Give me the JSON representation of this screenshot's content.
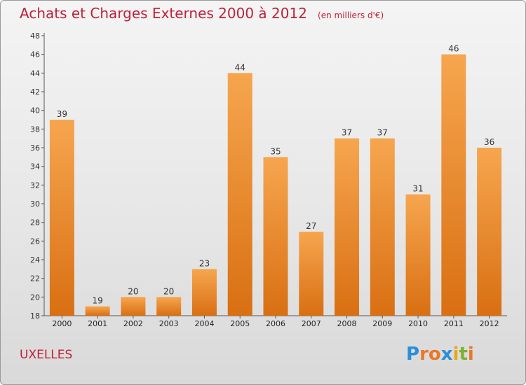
{
  "title": "Achats et Charges Externes 2000 à 2012",
  "unit": "(en milliers d'€)",
  "commune": "UXELLES",
  "logo": {
    "letters": [
      "P",
      "r",
      "o",
      "x",
      "i",
      "t",
      "i"
    ],
    "colors": [
      "#2a8fd6",
      "#e8782a",
      "#e8782a",
      "#2a8fd6",
      "#e8a71a",
      "#7ab32e",
      "#e8782a"
    ]
  },
  "colors": {
    "bar_light": "#f6a64f",
    "bar_dark": "#d96f12",
    "accent": "#c0203a"
  },
  "chart_data": {
    "type": "bar",
    "categories": [
      "2000",
      "2001",
      "2002",
      "2003",
      "2004",
      "2005",
      "2006",
      "2007",
      "2008",
      "2009",
      "2010",
      "2011",
      "2012"
    ],
    "values": [
      39,
      19,
      20,
      20,
      23,
      44,
      35,
      27,
      37,
      37,
      31,
      46,
      36
    ],
    "ylim": [
      18,
      48
    ],
    "yticks": [
      18,
      20,
      22,
      24,
      26,
      28,
      30,
      32,
      34,
      36,
      38,
      40,
      42,
      44,
      46,
      48
    ],
    "grid": false
  }
}
